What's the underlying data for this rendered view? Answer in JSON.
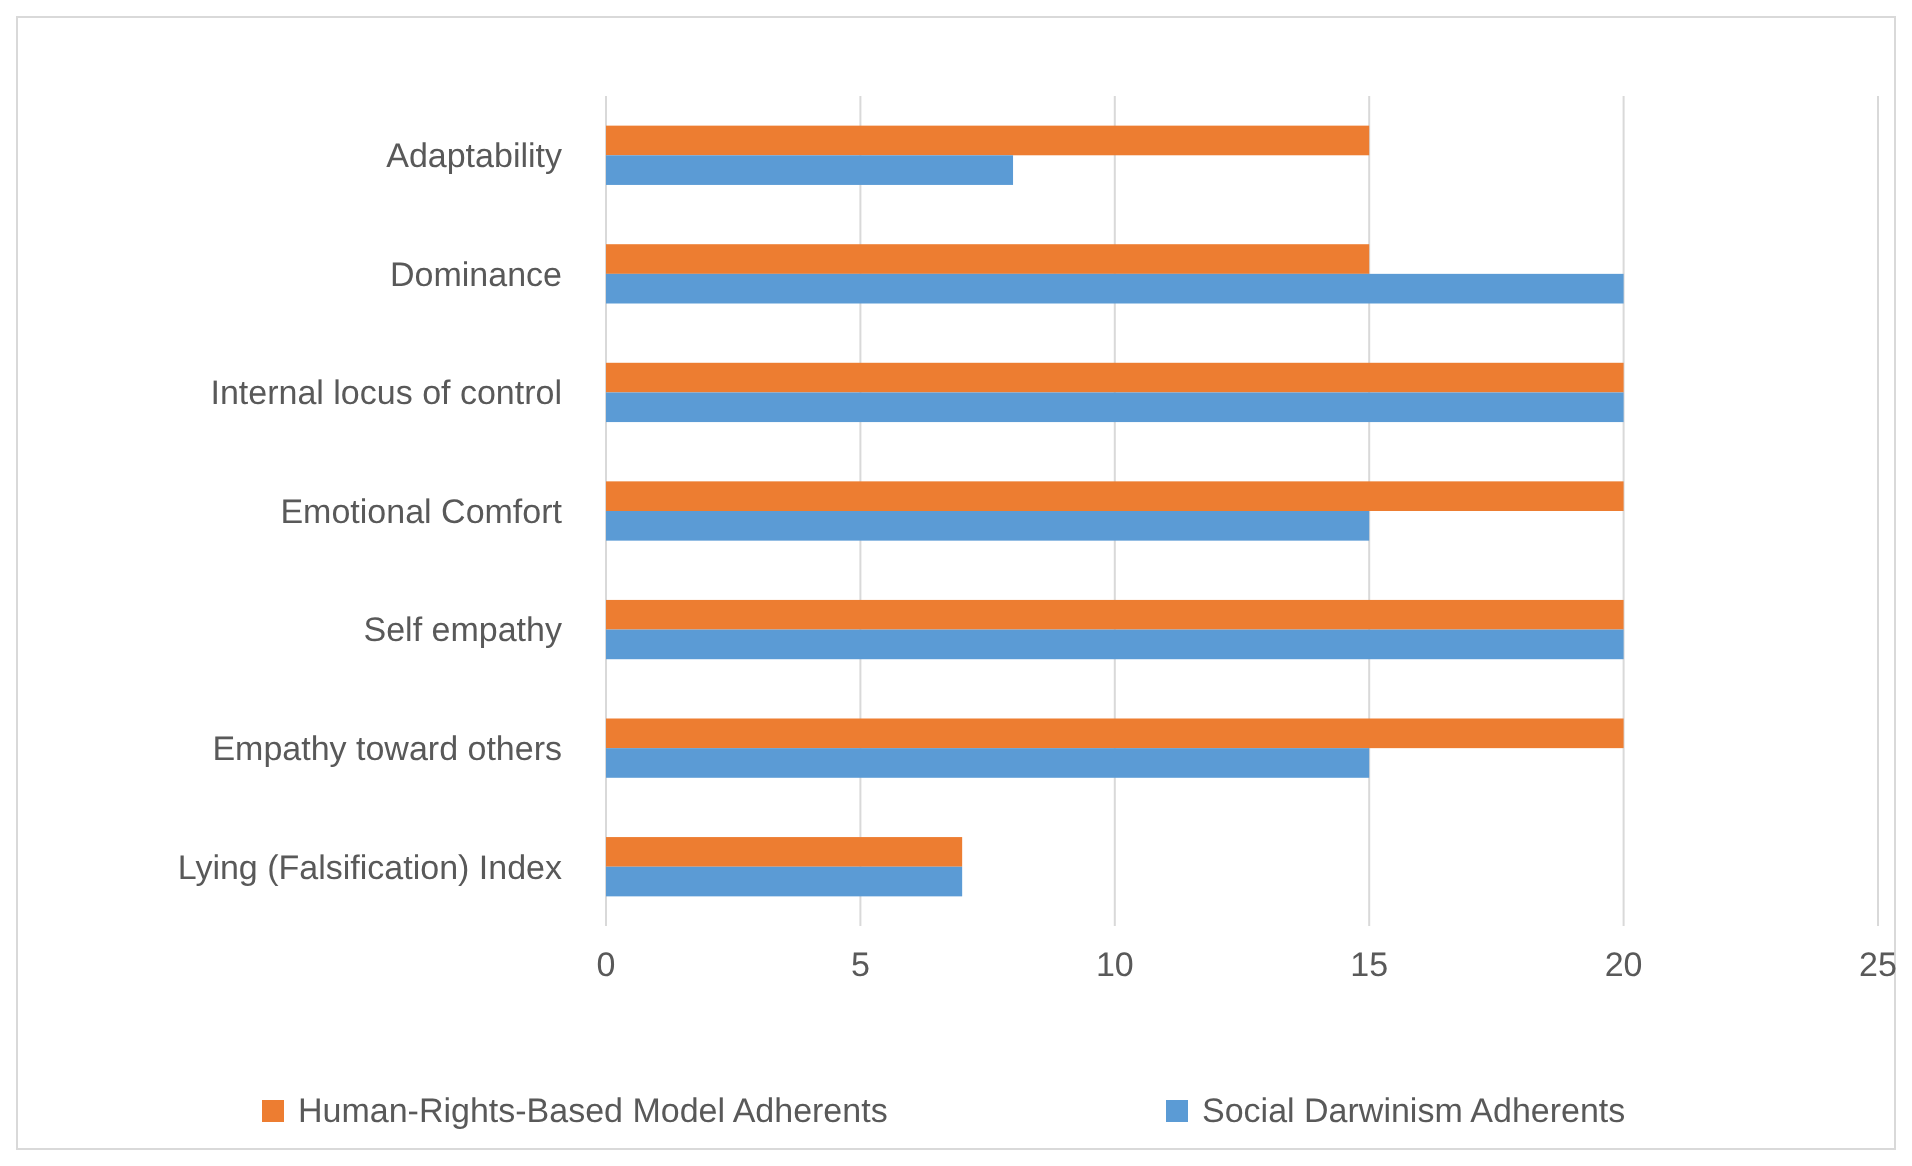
{
  "chart_data": {
    "type": "bar",
    "orientation": "horizontal",
    "categories": [
      "Adaptability",
      "Dominance",
      "Internal locus of control",
      "Emotional Comfort",
      "Self empathy",
      "Empathy toward others",
      "Lying (Falsification) Index"
    ],
    "series": [
      {
        "name": "Human-Rights-Based Model Adherents",
        "color": "#ed7d31",
        "values": [
          15,
          15,
          20,
          20,
          20,
          20,
          7
        ]
      },
      {
        "name": "Social Darwinism Adherents",
        "color": "#5b9bd5",
        "values": [
          8,
          20,
          20,
          15,
          20,
          15,
          7
        ]
      }
    ],
    "xlim": [
      0,
      25
    ],
    "xticks": [
      0,
      5,
      10,
      15,
      20,
      25
    ],
    "grid": "x",
    "legend": "bottom"
  }
}
